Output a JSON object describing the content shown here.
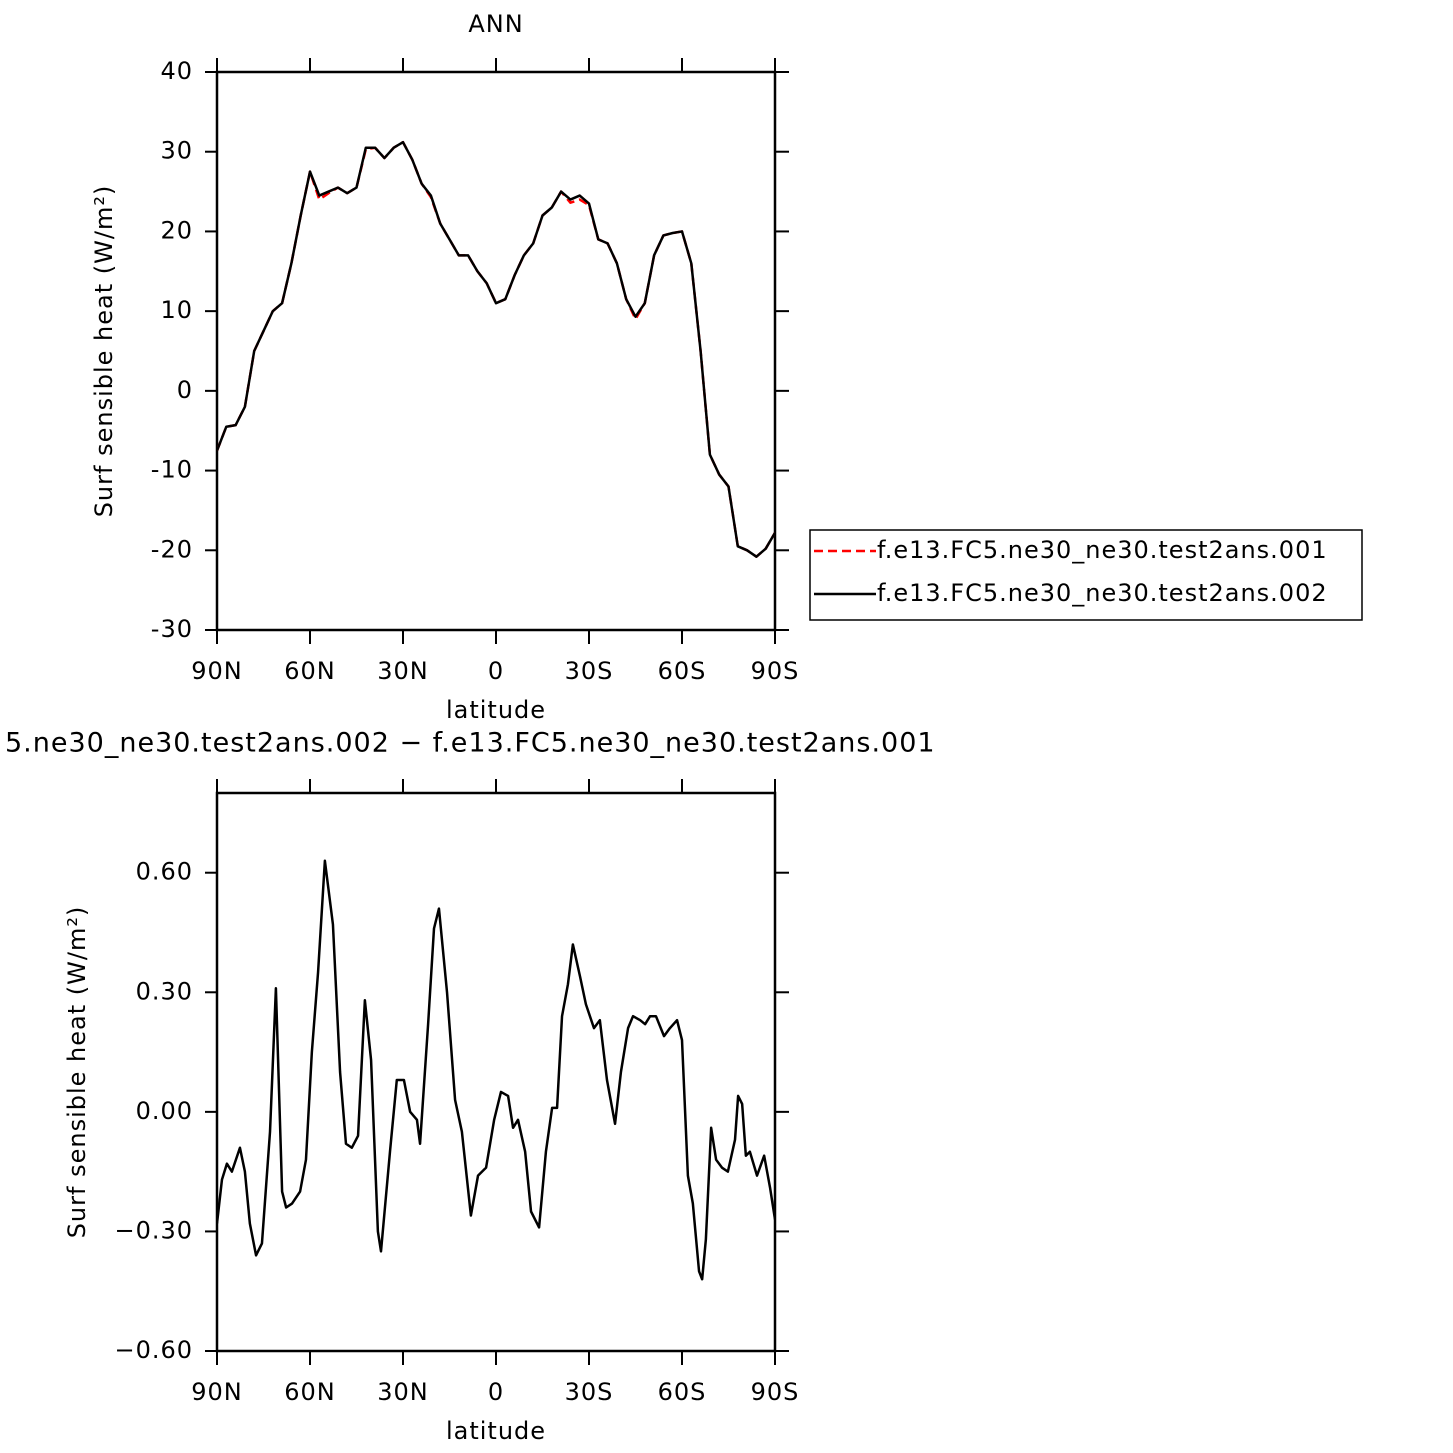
{
  "chart_data": [
    {
      "type": "line",
      "title": "ANN",
      "xlabel": "latitude",
      "ylabel": "Surf sensible heat (W/m²)",
      "x": [
        90,
        87,
        84,
        81,
        78,
        75,
        72,
        69,
        66,
        63,
        60,
        57,
        54,
        51,
        48,
        45,
        42,
        39,
        36,
        33,
        30,
        27,
        24,
        21,
        18,
        15,
        12,
        9,
        6,
        3,
        0,
        -3,
        -6,
        -9,
        -12,
        -15,
        -18,
        -21,
        -24,
        -27,
        -30,
        -33,
        -36,
        -39,
        -42,
        -45,
        -48,
        -51,
        -54,
        -57,
        -60,
        -63,
        -66,
        -69,
        -72,
        -75,
        -78,
        -81,
        -84,
        -87,
        -90
      ],
      "series": [
        {
          "name": "f.e13.FC5.ne30_ne30.test2ans.001",
          "color": "#ff0000",
          "linestyle": "dashed",
          "values": [
            -7.5,
            -4.5,
            -4.3,
            -2,
            5,
            7.5,
            10,
            11,
            16,
            22,
            27.5,
            24,
            24.8,
            25.5,
            24.8,
            25.5,
            30.3,
            30.5,
            29.2,
            30.5,
            31.2,
            29,
            26,
            24.3,
            21,
            19,
            17,
            17,
            15,
            13.5,
            11,
            11.5,
            14.5,
            17,
            18.5,
            22,
            23,
            25,
            23.6,
            24,
            23.3,
            19,
            18.5,
            16,
            11.5,
            9,
            11,
            17,
            19.5,
            19.8,
            20,
            16,
            5,
            -8,
            -10.5,
            -12,
            -19.5,
            -20,
            -20.8,
            -19.8,
            -17.8
          ]
        },
        {
          "name": "f.e13.FC5.ne30_ne30.test2ans.002",
          "color": "#000000",
          "linestyle": "solid",
          "values": [
            -7.5,
            -4.5,
            -4.3,
            -2,
            5,
            7.5,
            10,
            11,
            16,
            22,
            27.5,
            24.5,
            25,
            25.5,
            24.8,
            25.5,
            30.5,
            30.5,
            29.2,
            30.5,
            31.2,
            29,
            26,
            24.5,
            21,
            19,
            17,
            17,
            15,
            13.5,
            11,
            11.5,
            14.5,
            17,
            18.5,
            22,
            23,
            25,
            24,
            24.5,
            23.5,
            19,
            18.5,
            16,
            11.5,
            9.3,
            11,
            17,
            19.5,
            19.8,
            20,
            16,
            5,
            -8,
            -10.5,
            -12,
            -19.5,
            -20,
            -20.8,
            -19.8,
            -17.8
          ]
        }
      ],
      "xlim": [
        90,
        -90
      ],
      "xticks": [
        {
          "value": 90,
          "label": "90N"
        },
        {
          "value": 60,
          "label": "60N"
        },
        {
          "value": 30,
          "label": "30N"
        },
        0,
        {
          "value": -30,
          "label": "30S"
        },
        {
          "value": -60,
          "label": "60S"
        },
        {
          "value": -90,
          "label": "90S"
        }
      ],
      "ylim": [
        -30,
        40
      ],
      "yticks": [
        -30,
        -20,
        -10,
        0,
        10,
        20,
        30,
        40
      ],
      "legend": "right"
    },
    {
      "type": "line",
      "title": "5.ne30_ne30.test2ans.002 − f.e13.FC5.ne30_ne30.test2ans.001",
      "xlabel": "latitude",
      "ylabel": "Surf sensible heat (W/m²)",
      "x": [
        90,
        88.4,
        86.8,
        85.2,
        82.6,
        81,
        79.4,
        77.4,
        75.5,
        72.9,
        71,
        69,
        67.7,
        65.8,
        63.2,
        61.3,
        59.4,
        57.4,
        55.2,
        52.6,
        50.3,
        48.4,
        46.5,
        44.5,
        42.3,
        40.3,
        38.1,
        37.1,
        34.2,
        32,
        29.7,
        27.7,
        25.5,
        24.5,
        21.9,
        20,
        18.4,
        15.8,
        13.2,
        11,
        8.1,
        5.8,
        3.2,
        0.6,
        -1.6,
        -3.9,
        -5.5,
        -7.1,
        -9.4,
        -11.3,
        -13.9,
        -16.1,
        -18.1,
        -19.7,
        -21.3,
        -23.2,
        -24.8,
        -27.1,
        -29,
        -31.6,
        -33.5,
        -35.8,
        -38.4,
        -40.3,
        -42.6,
        -44.2,
        -46.5,
        -48.1,
        -49.7,
        -51.6,
        -54.2,
        -56.1,
        -58.4,
        -60,
        -61.9,
        -63.5,
        -65.5,
        -66.5,
        -67.7,
        -69.4,
        -71,
        -72.9,
        -74.8,
        -77.1,
        -78.1,
        -79.4,
        -80.6,
        -81.9,
        -84.2,
        -86.5,
        -88.4,
        -90
      ],
      "series": [
        {
          "color": "#000000",
          "linestyle": "solid",
          "values": [
            -0.28,
            -0.17,
            -0.13,
            -0.15,
            -0.09,
            -0.15,
            -0.28,
            -0.36,
            -0.33,
            -0.05,
            0.31,
            -0.2,
            -0.24,
            -0.23,
            -0.2,
            -0.12,
            0.15,
            0.35,
            0.63,
            0.47,
            0.1,
            -0.08,
            -0.09,
            -0.06,
            0.28,
            0.13,
            -0.3,
            -0.35,
            -0.1,
            0.08,
            0.08,
            0.0,
            -0.02,
            -0.08,
            0.22,
            0.46,
            0.51,
            0.3,
            0.03,
            -0.05,
            -0.26,
            -0.16,
            -0.14,
            -0.02,
            0.05,
            0.04,
            -0.04,
            -0.02,
            -0.1,
            -0.25,
            -0.29,
            -0.1,
            0.01,
            0.01,
            0.24,
            0.32,
            0.42,
            0.34,
            0.27,
            0.21,
            0.23,
            0.08,
            -0.03,
            0.1,
            0.21,
            0.24,
            0.23,
            0.22,
            0.24,
            0.24,
            0.19,
            0.21,
            0.23,
            0.18,
            -0.16,
            -0.23,
            -0.4,
            -0.42,
            -0.32,
            -0.04,
            -0.12,
            -0.14,
            -0.15,
            -0.07,
            0.04,
            0.02,
            -0.11,
            -0.1,
            -0.16,
            -0.11,
            -0.19,
            -0.27
          ]
        }
      ],
      "xlim": [
        90,
        -90
      ],
      "xticks": [
        {
          "value": 90,
          "label": "90N"
        },
        {
          "value": 60,
          "label": "60N"
        },
        {
          "value": 30,
          "label": "30N"
        },
        0,
        {
          "value": -30,
          "label": "30S"
        },
        {
          "value": -60,
          "label": "60S"
        },
        {
          "value": -90,
          "label": "90S"
        }
      ],
      "ylim": [
        -0.6,
        0.8
      ],
      "yticks": [
        {
          "value": -0.6,
          "label": "−0.60"
        },
        {
          "value": -0.3,
          "label": "−0.30"
        },
        {
          "value": 0,
          "label": "0.00"
        },
        {
          "value": 0.3,
          "label": "0.30"
        },
        {
          "value": 0.6,
          "label": "0.60"
        }
      ]
    }
  ]
}
